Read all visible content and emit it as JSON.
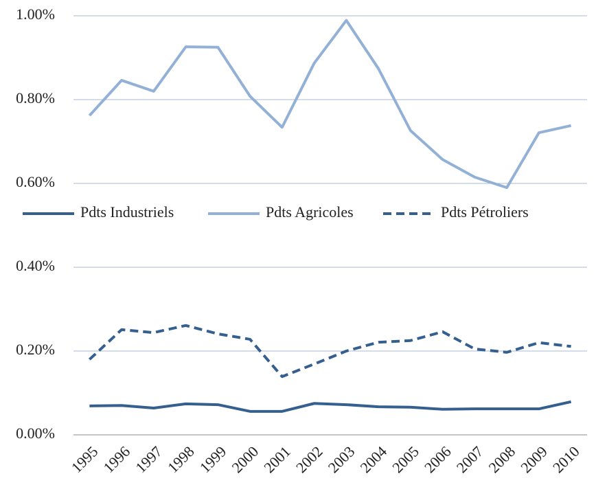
{
  "chart_data": {
    "type": "line",
    "categories": [
      "1995",
      "1996",
      "1997",
      "1998",
      "1999",
      "2000",
      "2001",
      "2002",
      "2003",
      "2004",
      "2005",
      "2006",
      "2007",
      "2008",
      "2009",
      "2010"
    ],
    "series": [
      {
        "name": "Pdts Industriels",
        "color": "#345f8f",
        "dash": false,
        "values": [
          0.069,
          0.07,
          0.064,
          0.074,
          0.072,
          0.056,
          0.056,
          0.075,
          0.072,
          0.067,
          0.066,
          0.061,
          0.062,
          0.062,
          0.062,
          0.079
        ]
      },
      {
        "name": "Pdts Agricoles",
        "color": "#93b1d6",
        "dash": false,
        "values": [
          0.762,
          0.846,
          0.82,
          0.926,
          0.925,
          0.808,
          0.734,
          0.887,
          0.989,
          0.874,
          0.726,
          0.657,
          0.615,
          0.59,
          0.721,
          0.738
        ]
      },
      {
        "name": "Pdts Pétroliers",
        "color": "#345f8f",
        "dash": true,
        "values": [
          0.18,
          0.251,
          0.244,
          0.261,
          0.241,
          0.228,
          0.139,
          0.169,
          0.2,
          0.221,
          0.225,
          0.246,
          0.205,
          0.197,
          0.22,
          0.211
        ]
      }
    ],
    "ylim": [
      0,
      1
    ],
    "yticks": [
      {
        "value": 0,
        "label": "0.00%"
      },
      {
        "value": 0.2,
        "label": "0.20%"
      },
      {
        "value": 0.4,
        "label": "0.40%"
      },
      {
        "value": 0.6,
        "label": "0.60%"
      },
      {
        "value": 0.8,
        "label": "0.80%"
      },
      {
        "value": 1,
        "label": "1.00%"
      }
    ],
    "grid": true,
    "legend": "center"
  }
}
